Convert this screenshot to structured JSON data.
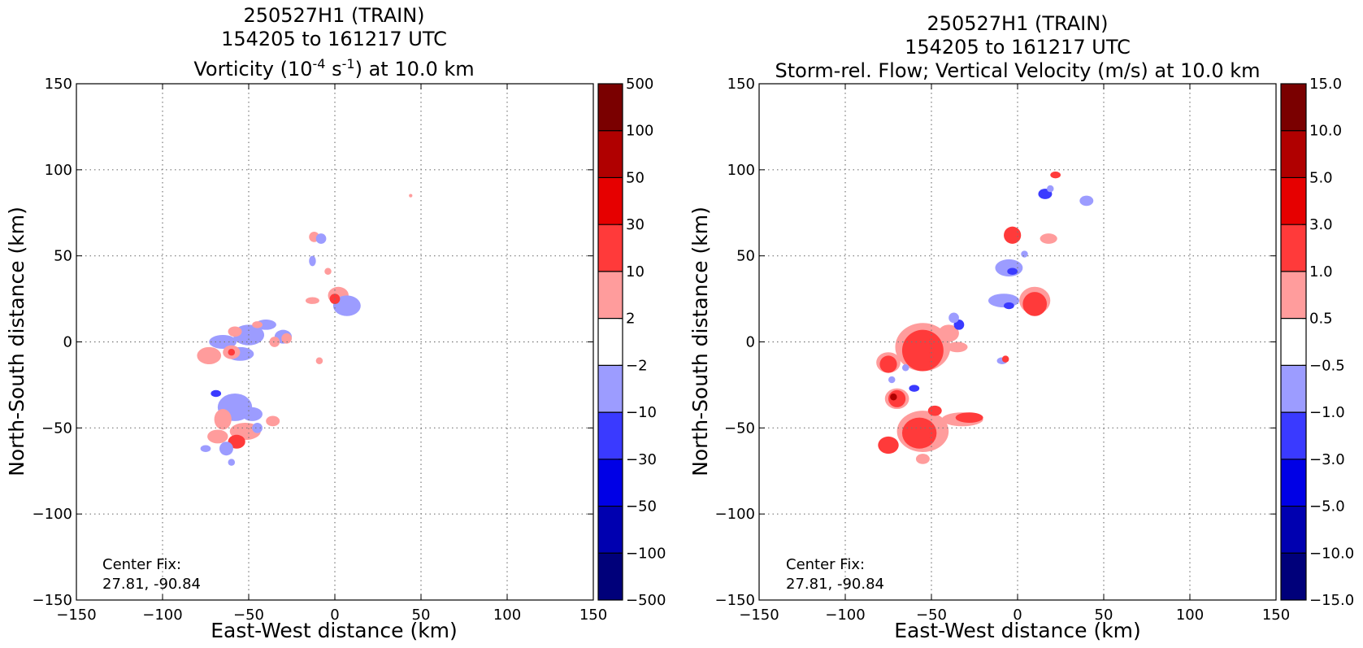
{
  "chart_data": [
    {
      "type": "heatmap",
      "title_lines": [
        "250527H1 (TRAIN)",
        "154205 to 161217 UTC"
      ],
      "title_line3": {
        "prefix": "Vorticity (10",
        "sup1": "-4",
        "mid": " s",
        "sup2": "-1",
        "suffix": ") at 10.0 km"
      },
      "xlabel": "East-West distance (km)",
      "ylabel": "North-South distance (km)",
      "xlim": [
        -150,
        150
      ],
      "ylim": [
        -150,
        150
      ],
      "x_ticks": [
        "−150",
        "−100",
        "−50",
        "0",
        "50",
        "100",
        "150"
      ],
      "y_ticks": [
        "150",
        "100",
        "50",
        "0",
        "−50",
        "−100",
        "−150"
      ],
      "grid": true,
      "annotation": [
        "Center Fix:",
        "27.81, -90.84"
      ],
      "colorbar": {
        "ticks": [
          "500",
          "100",
          "50",
          "30",
          "10",
          "2",
          "−2",
          "−10",
          "−30",
          "−50",
          "−100",
          "−500"
        ],
        "colors": [
          "#7a0000",
          "#b00000",
          "#e60000",
          "#ff3a3a",
          "#ff9c9c",
          "#ffffff",
          "#9c9cff",
          "#3a3aff",
          "#0000e6",
          "#0000b0",
          "#00007a"
        ]
      },
      "features": [
        {
          "x": -12,
          "y": 61,
          "rx": 3,
          "ry": 3,
          "color": "#ff9c9c"
        },
        {
          "x": -8,
          "y": 60,
          "rx": 3,
          "ry": 3,
          "color": "#9c9cff"
        },
        {
          "x": -13,
          "y": 47,
          "rx": 2,
          "ry": 3,
          "color": "#9c9cff"
        },
        {
          "x": -4,
          "y": 41,
          "rx": 2,
          "ry": 2,
          "color": "#ff9c9c"
        },
        {
          "x": 2,
          "y": 27,
          "rx": 6,
          "ry": 5,
          "color": "#ff9c9c"
        },
        {
          "x": 7,
          "y": 21,
          "rx": 8,
          "ry": 6,
          "color": "#9c9cff"
        },
        {
          "x": -13,
          "y": 24,
          "rx": 4,
          "ry": 2,
          "color": "#ff9c9c"
        },
        {
          "x": 0,
          "y": 25,
          "rx": 3,
          "ry": 3,
          "color": "#ff3a3a"
        },
        {
          "x": 44,
          "y": 85,
          "rx": 1,
          "ry": 1,
          "color": "#ff9c9c"
        },
        {
          "x": -9,
          "y": -11,
          "rx": 2,
          "ry": 2,
          "color": "#ff9c9c"
        },
        {
          "x": -65,
          "y": 0,
          "rx": 8,
          "ry": 4,
          "color": "#9c9cff"
        },
        {
          "x": -50,
          "y": 4,
          "rx": 9,
          "ry": 6,
          "color": "#9c9cff"
        },
        {
          "x": -40,
          "y": 10,
          "rx": 6,
          "ry": 3,
          "color": "#9c9cff"
        },
        {
          "x": -30,
          "y": 3,
          "rx": 5,
          "ry": 4,
          "color": "#9c9cff"
        },
        {
          "x": -55,
          "y": -7,
          "rx": 8,
          "ry": 4,
          "color": "#9c9cff"
        },
        {
          "x": -73,
          "y": -8,
          "rx": 7,
          "ry": 5,
          "color": "#ff9c9c"
        },
        {
          "x": -60,
          "y": -6,
          "rx": 5,
          "ry": 4,
          "color": "#ff9c9c"
        },
        {
          "x": -58,
          "y": 6,
          "rx": 4,
          "ry": 3,
          "color": "#ff9c9c"
        },
        {
          "x": -45,
          "y": 10,
          "rx": 3,
          "ry": 2,
          "color": "#ff9c9c"
        },
        {
          "x": -35,
          "y": 0,
          "rx": 3,
          "ry": 3,
          "color": "#ff9c9c"
        },
        {
          "x": -28,
          "y": 2,
          "rx": 3,
          "ry": 3,
          "color": "#ff9c9c"
        },
        {
          "x": -60,
          "y": -6,
          "rx": 2,
          "ry": 2,
          "color": "#ff3a3a"
        },
        {
          "x": -58,
          "y": -38,
          "rx": 10,
          "ry": 8,
          "color": "#9c9cff"
        },
        {
          "x": -48,
          "y": -42,
          "rx": 6,
          "ry": 4,
          "color": "#9c9cff"
        },
        {
          "x": -65,
          "y": -45,
          "rx": 5,
          "ry": 6,
          "color": "#ff9c9c"
        },
        {
          "x": -52,
          "y": -52,
          "rx": 9,
          "ry": 5,
          "color": "#ff9c9c"
        },
        {
          "x": -68,
          "y": -55,
          "rx": 6,
          "ry": 4,
          "color": "#ff9c9c"
        },
        {
          "x": -36,
          "y": -46,
          "rx": 4,
          "ry": 3,
          "color": "#ff9c9c"
        },
        {
          "x": -57,
          "y": -58,
          "rx": 5,
          "ry": 4,
          "color": "#ff3a3a"
        },
        {
          "x": -63,
          "y": -62,
          "rx": 4,
          "ry": 4,
          "color": "#9c9cff"
        },
        {
          "x": -75,
          "y": -62,
          "rx": 3,
          "ry": 2,
          "color": "#9c9cff"
        },
        {
          "x": -69,
          "y": -30,
          "rx": 3,
          "ry": 2,
          "color": "#3a3aff"
        },
        {
          "x": -45,
          "y": -50,
          "rx": 3,
          "ry": 3,
          "color": "#9c9cff"
        },
        {
          "x": -60,
          "y": -70,
          "rx": 2,
          "ry": 2,
          "color": "#9c9cff"
        }
      ]
    },
    {
      "type": "heatmap",
      "title_lines": [
        "250527H1 (TRAIN)",
        "154205 to 161217 UTC",
        "Storm-rel. Flow; Vertical Velocity (m/s) at 10.0 km"
      ],
      "xlabel": "East-West distance (km)",
      "ylabel": "North-South distance (km)",
      "xlim": [
        -150,
        150
      ],
      "ylim": [
        -150,
        150
      ],
      "x_ticks": [
        "−150",
        "−100",
        "−50",
        "0",
        "50",
        "100",
        "150"
      ],
      "y_ticks": [
        "150",
        "100",
        "50",
        "0",
        "−50",
        "−100",
        "−150"
      ],
      "grid": true,
      "annotation": [
        "Center Fix:",
        "27.81, -90.84"
      ],
      "colorbar": {
        "ticks": [
          "15.0",
          "10.0",
          "5.0",
          "3.0",
          "1.0",
          "0.5",
          "−0.5",
          "−1.0",
          "−3.0",
          "−5.0",
          "−10.0",
          "−15.0"
        ],
        "colors": [
          "#7a0000",
          "#b00000",
          "#e60000",
          "#ff3a3a",
          "#ff9c9c",
          "#ffffff",
          "#9c9cff",
          "#3a3aff",
          "#0000e6",
          "#0000b0",
          "#00007a"
        ]
      },
      "features": [
        {
          "x": 22,
          "y": 97,
          "rx": 3,
          "ry": 2,
          "color": "#ff3a3a"
        },
        {
          "x": 16,
          "y": 86,
          "rx": 4,
          "ry": 3,
          "color": "#3a3aff"
        },
        {
          "x": 19,
          "y": 89,
          "rx": 2,
          "ry": 2,
          "color": "#9c9cff"
        },
        {
          "x": 40,
          "y": 82,
          "rx": 4,
          "ry": 3,
          "color": "#9c9cff"
        },
        {
          "x": -3,
          "y": 62,
          "rx": 5,
          "ry": 5,
          "color": "#ff3a3a"
        },
        {
          "x": 18,
          "y": 60,
          "rx": 5,
          "ry": 3,
          "color": "#ff9c9c"
        },
        {
          "x": -5,
          "y": 43,
          "rx": 8,
          "ry": 5,
          "color": "#9c9cff"
        },
        {
          "x": -3,
          "y": 41,
          "rx": 3,
          "ry": 2,
          "color": "#3a3aff"
        },
        {
          "x": 4,
          "y": 51,
          "rx": 2,
          "ry": 2,
          "color": "#9c9cff"
        },
        {
          "x": 10,
          "y": 24,
          "rx": 9,
          "ry": 8,
          "color": "#ff9c9c"
        },
        {
          "x": 10,
          "y": 22,
          "rx": 7,
          "ry": 7,
          "color": "#ff3a3a"
        },
        {
          "x": -8,
          "y": 24,
          "rx": 9,
          "ry": 4,
          "color": "#9c9cff"
        },
        {
          "x": -5,
          "y": 21,
          "rx": 3,
          "ry": 2,
          "color": "#3a3aff"
        },
        {
          "x": -55,
          "y": -3,
          "rx": 16,
          "ry": 14,
          "color": "#ff9c9c"
        },
        {
          "x": -55,
          "y": -5,
          "rx": 12,
          "ry": 12,
          "color": "#ff3a3a"
        },
        {
          "x": -40,
          "y": 5,
          "rx": 6,
          "ry": 5,
          "color": "#ff9c9c"
        },
        {
          "x": -35,
          "y": -3,
          "rx": 6,
          "ry": 3,
          "color": "#ff9c9c"
        },
        {
          "x": -75,
          "y": -12,
          "rx": 7,
          "ry": 6,
          "color": "#ff9c9c"
        },
        {
          "x": -75,
          "y": -13,
          "rx": 5,
          "ry": 5,
          "color": "#ff3a3a"
        },
        {
          "x": -34,
          "y": 10,
          "rx": 3,
          "ry": 3,
          "color": "#3a3aff"
        },
        {
          "x": -37,
          "y": 14,
          "rx": 3,
          "ry": 3,
          "color": "#9c9cff"
        },
        {
          "x": -65,
          "y": -15,
          "rx": 2,
          "ry": 2,
          "color": "#9c9cff"
        },
        {
          "x": -9,
          "y": -11,
          "rx": 3,
          "ry": 2,
          "color": "#9c9cff"
        },
        {
          "x": -7,
          "y": -10,
          "rx": 2,
          "ry": 2,
          "color": "#ff3a3a"
        },
        {
          "x": -55,
          "y": -52,
          "rx": 15,
          "ry": 12,
          "color": "#ff9c9c"
        },
        {
          "x": -57,
          "y": -53,
          "rx": 10,
          "ry": 9,
          "color": "#ff3a3a"
        },
        {
          "x": -70,
          "y": -33,
          "rx": 7,
          "ry": 6,
          "color": "#ff9c9c"
        },
        {
          "x": -70,
          "y": -33,
          "rx": 5,
          "ry": 5,
          "color": "#ff3a3a"
        },
        {
          "x": -72,
          "y": -32,
          "rx": 2,
          "ry": 2,
          "color": "#b00000"
        },
        {
          "x": -32,
          "y": -45,
          "rx": 12,
          "ry": 4,
          "color": "#ff9c9c"
        },
        {
          "x": -28,
          "y": -44,
          "rx": 8,
          "ry": 3,
          "color": "#ff3a3a"
        },
        {
          "x": -75,
          "y": -60,
          "rx": 6,
          "ry": 5,
          "color": "#ff3a3a"
        },
        {
          "x": -48,
          "y": -40,
          "rx": 4,
          "ry": 3,
          "color": "#ff3a3a"
        },
        {
          "x": -73,
          "y": -22,
          "rx": 2,
          "ry": 2,
          "color": "#9c9cff"
        },
        {
          "x": -60,
          "y": -27,
          "rx": 3,
          "ry": 2,
          "color": "#3a3aff"
        },
        {
          "x": -55,
          "y": -68,
          "rx": 4,
          "ry": 3,
          "color": "#ff9c9c"
        }
      ]
    }
  ]
}
